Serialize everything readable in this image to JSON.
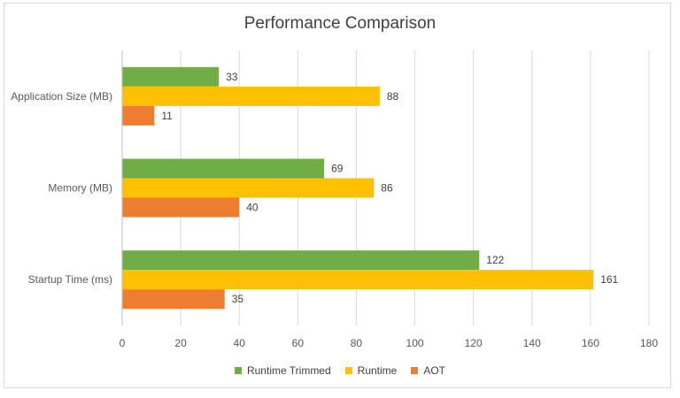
{
  "chart_data": {
    "type": "bar",
    "orientation": "horizontal",
    "title": "Performance Comparison",
    "categories": [
      "Application Size (MB)",
      "Memory (MB)",
      "Startup Time (ms)"
    ],
    "series": [
      {
        "name": "Runtime Trimmed",
        "color": "#70ad47",
        "values": [
          33,
          69,
          122
        ]
      },
      {
        "name": "Runtime",
        "color": "#ffc000",
        "values": [
          88,
          86,
          161
        ]
      },
      {
        "name": "AOT",
        "color": "#ed7d31",
        "values": [
          11,
          40,
          35
        ]
      }
    ],
    "xlim": [
      0,
      180
    ],
    "xticks": [
      0,
      20,
      40,
      60,
      80,
      100,
      120,
      140,
      160,
      180
    ],
    "grid": true,
    "legend_position": "bottom",
    "data_labels": true
  }
}
